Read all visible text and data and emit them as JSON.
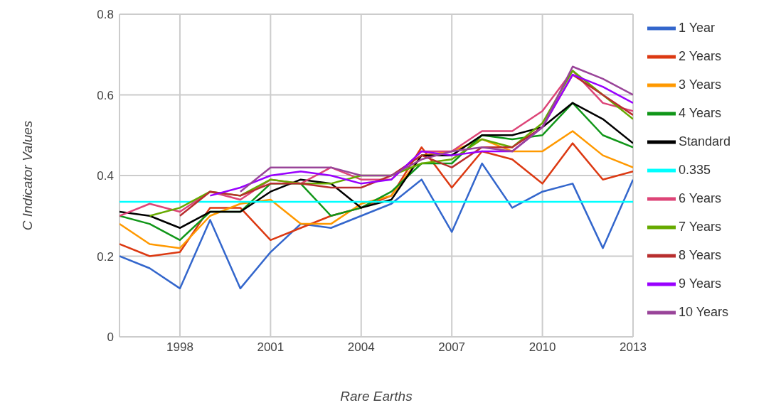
{
  "chart_data": {
    "type": "line",
    "xlabel": "Rare Earths",
    "ylabel": "C Indicator Values",
    "x": [
      1996,
      1997,
      1998,
      1999,
      2000,
      2001,
      2002,
      2003,
      2004,
      2005,
      2006,
      2007,
      2008,
      2009,
      2010,
      2011,
      2012,
      2013
    ],
    "xlim": [
      1996,
      2013
    ],
    "xticks": [
      1998,
      2001,
      2004,
      2007,
      2010,
      2013
    ],
    "ylim": [
      0,
      0.8
    ],
    "yticks": [
      0,
      0.2,
      0.4,
      0.6,
      0.8
    ],
    "grid": true,
    "legend": "right",
    "marker": "none",
    "line_style": "solid",
    "series": [
      {
        "name": "1 Year",
        "color": "#3366cc",
        "values": [
          0.2,
          0.17,
          0.12,
          0.29,
          0.12,
          0.21,
          0.28,
          0.27,
          0.3,
          0.33,
          0.39,
          0.26,
          0.43,
          0.32,
          0.36,
          0.38,
          0.22,
          0.39
        ]
      },
      {
        "name": "2 Years",
        "color": "#dc3912",
        "values": [
          0.23,
          0.2,
          0.21,
          0.32,
          0.32,
          0.24,
          0.27,
          0.3,
          0.32,
          0.35,
          0.47,
          0.37,
          0.46,
          0.44,
          0.38,
          0.48,
          0.39,
          0.41
        ]
      },
      {
        "name": "3 Years",
        "color": "#ff9900",
        "values": [
          0.28,
          0.23,
          0.22,
          0.3,
          0.33,
          0.34,
          0.28,
          0.28,
          0.33,
          0.35,
          0.45,
          0.46,
          0.49,
          0.46,
          0.46,
          0.51,
          0.45,
          0.42
        ]
      },
      {
        "name": "4 Years",
        "color": "#109618",
        "values": [
          0.3,
          0.28,
          0.24,
          0.31,
          0.31,
          0.38,
          0.38,
          0.3,
          0.32,
          0.36,
          0.43,
          0.43,
          0.5,
          0.49,
          0.5,
          0.58,
          0.5,
          0.47
        ]
      },
      {
        "name": "Standard",
        "color": "#000000",
        "values": [
          0.31,
          0.3,
          0.27,
          0.31,
          0.31,
          0.36,
          0.39,
          0.38,
          0.32,
          0.34,
          0.45,
          0.45,
          0.5,
          0.5,
          0.52,
          0.58,
          0.54,
          0.48
        ]
      },
      {
        "name": "0.335",
        "color": "#00ffff",
        "values": [
          0.335,
          0.335,
          0.335,
          0.335,
          0.335,
          0.335,
          0.335,
          0.335,
          0.335,
          0.335,
          0.335,
          0.335,
          0.335,
          0.335,
          0.335,
          0.335,
          0.335,
          0.335
        ]
      },
      {
        "name": "6 Years",
        "color": "#dd4477",
        "values": [
          0.3,
          0.33,
          0.31,
          0.36,
          0.34,
          0.39,
          0.38,
          0.42,
          0.39,
          0.39,
          0.46,
          0.46,
          0.51,
          0.51,
          0.56,
          0.66,
          0.58,
          0.56
        ]
      },
      {
        "name": "7 Years",
        "color": "#66aa00",
        "values": [
          null,
          0.3,
          0.32,
          0.36,
          0.35,
          0.39,
          0.38,
          0.38,
          0.4,
          0.4,
          0.43,
          0.44,
          0.49,
          0.47,
          0.53,
          0.66,
          0.6,
          0.54
        ]
      },
      {
        "name": "8 Years",
        "color": "#b82e2e",
        "values": [
          null,
          null,
          0.3,
          0.36,
          0.35,
          0.38,
          0.38,
          0.37,
          0.37,
          0.4,
          0.45,
          0.42,
          0.47,
          0.47,
          0.52,
          0.65,
          0.6,
          0.55
        ]
      },
      {
        "name": "9 Years",
        "color": "#9900ff",
        "values": [
          null,
          null,
          null,
          0.35,
          0.37,
          0.4,
          0.41,
          0.4,
          0.38,
          0.39,
          0.46,
          0.45,
          0.46,
          0.46,
          0.52,
          0.65,
          0.62,
          0.58
        ]
      },
      {
        "name": "10 Years",
        "color": "#994499",
        "values": [
          null,
          null,
          null,
          null,
          0.36,
          0.42,
          0.42,
          0.42,
          0.4,
          0.4,
          0.44,
          0.46,
          0.47,
          0.46,
          0.52,
          0.67,
          0.64,
          0.6
        ]
      }
    ]
  }
}
